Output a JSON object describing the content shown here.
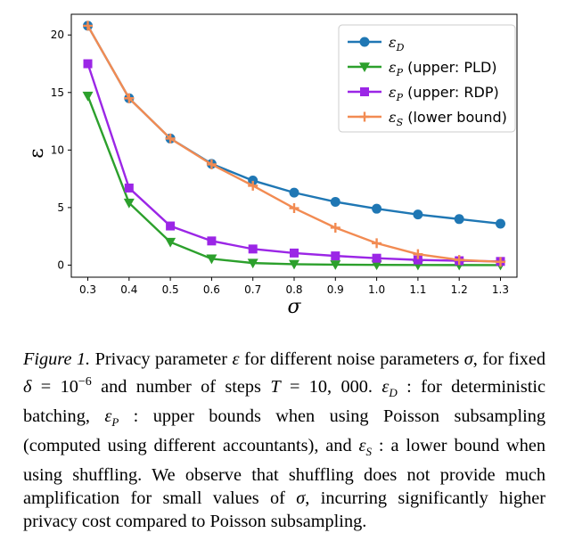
{
  "chart_data": {
    "type": "line",
    "x": [
      0.3,
      0.4,
      0.5,
      0.6,
      0.7,
      0.8,
      0.9,
      1.0,
      1.1,
      1.2,
      1.3
    ],
    "x_tick_labels": [
      "0.3",
      "0.4",
      "0.5",
      "0.6",
      "0.7",
      "0.8",
      "0.9",
      "1.0",
      "1.1",
      "1.2",
      "1.3"
    ],
    "y_ticks": [
      0,
      5,
      10,
      15,
      20
    ],
    "xlim": [
      0.26,
      1.34
    ],
    "ylim": [
      -1.05,
      21.8
    ],
    "xlabel": "σ",
    "ylabel": "ε",
    "grid": false,
    "legend_position": "top-right",
    "series": [
      {
        "name": "ε_D",
        "legend_main": "ε",
        "legend_sub": "D",
        "legend_suffix": "",
        "color": "#1f77b4",
        "marker": "circle",
        "values": [
          20.8,
          14.5,
          11.0,
          8.8,
          7.35,
          6.3,
          5.5,
          4.9,
          4.4,
          4.0,
          3.6
        ]
      },
      {
        "name": "ε_P (upper: PLD)",
        "legend_main": "ε",
        "legend_sub": "P",
        "legend_suffix": " (upper: PLD)",
        "color": "#2ca02c",
        "marker": "triangle-down",
        "values": [
          14.7,
          5.4,
          2.0,
          0.55,
          0.18,
          0.08,
          0.04,
          0.02,
          0.01,
          0.005,
          0.003
        ]
      },
      {
        "name": "ε_P (upper: RDP)",
        "legend_main": "ε",
        "legend_sub": "P",
        "legend_suffix": " (upper: RDP)",
        "color": "#9b26e6",
        "marker": "square",
        "values": [
          17.5,
          6.7,
          3.4,
          2.1,
          1.4,
          1.05,
          0.8,
          0.6,
          0.45,
          0.38,
          0.32
        ]
      },
      {
        "name": "ε_S (lower bound)",
        "legend_main": "ε",
        "legend_sub": "S",
        "legend_suffix": " (lower bound)",
        "color": "#f28b52",
        "marker": "plus",
        "values": [
          20.8,
          14.5,
          11.0,
          8.75,
          6.9,
          4.95,
          3.25,
          1.9,
          0.95,
          0.45,
          0.28
        ]
      }
    ]
  },
  "caption": {
    "lead": "Figure 1.",
    "line1a": " Privacy parameter ",
    "eps": "ε",
    "line1b": " for different noise parameters ",
    "sigma": "σ",
    "line1c": ", for fixed ",
    "delta": "δ",
    "eq": " = ",
    "delta_base": "10",
    "delta_exp": "−6",
    "line2a": " and number of steps ",
    "T": "T",
    "T_val": "10, 000.",
    "epsD_main": "ε",
    "epsD_sub": "D",
    "line2b": " : for deterministic batching, ",
    "epsP_main": "ε",
    "epsP_sub": "P",
    "line3b": " : upper bounds when using Poisson subsampling (computed using different accountants), and ",
    "epsS_main": "ε",
    "epsS_sub": "S",
    "line4b": " : a lower bound when using shuffling. We observe that shuffling does not provide much amplification for small values of ",
    "sigma2": "σ",
    "line6b": ", incurring significantly higher privacy cost compared to Poisson subsampling."
  }
}
